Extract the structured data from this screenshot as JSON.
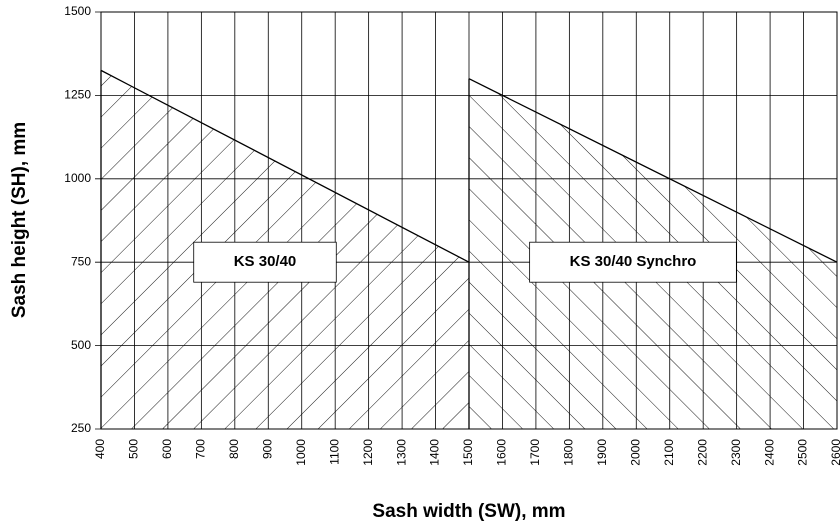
{
  "chart_data": {
    "type": "area",
    "x_label": "Sash width (SW), mm",
    "y_label": "Sash height (SH), mm",
    "series": [
      {
        "name": "KS 30/40",
        "color": "#000000",
        "hatch": "/",
        "x": [
          400,
          1500
        ],
        "values": [
          1325,
          750
        ]
      },
      {
        "name": "KS 30/40 Synchro",
        "color": "#000000",
        "hatch": "\\",
        "x": [
          1500,
          2600
        ],
        "values": [
          1300,
          750
        ]
      }
    ],
    "xlim": [
      400,
      2600
    ],
    "xticks": [
      400,
      500,
      600,
      700,
      800,
      900,
      1000,
      1100,
      1200,
      1300,
      1400,
      1500,
      1600,
      1700,
      1800,
      1900,
      2000,
      2100,
      2200,
      2300,
      2400,
      2500,
      2600
    ],
    "ylim": [
      250,
      1500
    ],
    "yticks": [
      250,
      500,
      750,
      1000,
      1250,
      1500
    ],
    "grid": true
  }
}
